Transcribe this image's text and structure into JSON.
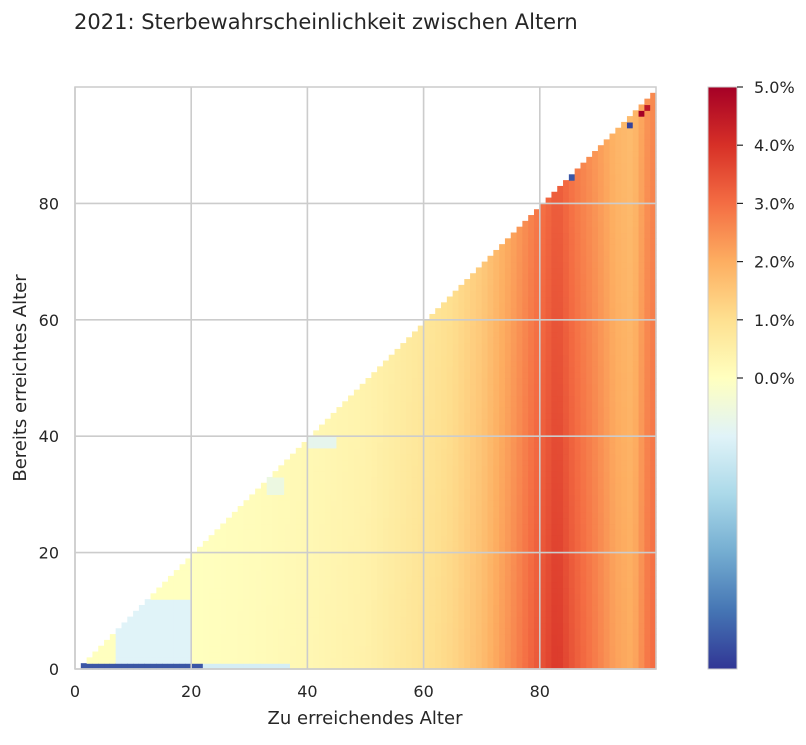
{
  "chart_data": {
    "type": "heatmap",
    "title": "2021: Sterbewahrscheinlichkeit zwischen Altern",
    "xlabel": "Zu erreichendes Alter",
    "ylabel": "Bereits erreichtes Alter",
    "x_range": [
      0,
      100
    ],
    "y_range": [
      0,
      100
    ],
    "x_ticks": [
      0,
      20,
      40,
      60,
      80
    ],
    "y_ticks": [
      0,
      20,
      40,
      60,
      80
    ],
    "grid": true,
    "mask": "cells shown only where Zu erreichendes Alter > Bereits erreichtes Alter",
    "colormap": "RdYlBu_r",
    "colormap_stops": [
      "#313695",
      "#4575b4",
      "#74add1",
      "#abd9e9",
      "#e0f3f8",
      "#ffffbf",
      "#fee090",
      "#fdae61",
      "#f46d43",
      "#d73027",
      "#a50026"
    ],
    "colorbar": {
      "min_percent": -5.0,
      "max_percent": 5.0,
      "tick_values": [
        5.0,
        4.0,
        3.0,
        2.0,
        1.0,
        0.0
      ],
      "tick_labels": [
        "5.0%",
        "4.0%",
        "3.0%",
        "2.0%",
        "1.0%",
        "0.0%"
      ]
    },
    "values_description_unit": "percent",
    "column_profile_percent": [
      {
        "x": 0,
        "v": 0.0
      },
      {
        "x": 20,
        "v": 0.0
      },
      {
        "x": 30,
        "v": 0.1
      },
      {
        "x": 40,
        "v": 0.25
      },
      {
        "x": 50,
        "v": 0.45
      },
      {
        "x": 60,
        "v": 0.9
      },
      {
        "x": 65,
        "v": 1.2
      },
      {
        "x": 70,
        "v": 1.7
      },
      {
        "x": 75,
        "v": 2.5
      },
      {
        "x": 80,
        "v": 3.4
      },
      {
        "x": 83,
        "v": 3.9
      },
      {
        "x": 86,
        "v": 3.3
      },
      {
        "x": 90,
        "v": 2.7
      },
      {
        "x": 93,
        "v": 2.2
      },
      {
        "x": 96,
        "v": 2.0
      },
      {
        "x": 99,
        "v": 3.0
      }
    ],
    "negative_regions_percent": [
      {
        "x_from": 1,
        "x_to": 22,
        "y_from": 0,
        "y_to": 1,
        "v": -4.5
      },
      {
        "x_from": 22,
        "x_to": 37,
        "y_from": 0,
        "y_to": 1,
        "v": -1.2
      },
      {
        "x_from": 7,
        "x_to": 20,
        "y_from": 1,
        "y_to": 12,
        "v": -1.0
      },
      {
        "x_from": 40,
        "x_to": 45,
        "y_from": 38,
        "y_to": 40,
        "v": -0.8
      },
      {
        "x_from": 33,
        "x_to": 36,
        "y_from": 30,
        "y_to": 33,
        "v": -0.6
      }
    ],
    "outlier_cells_percent": [
      {
        "x": 95,
        "y": 93,
        "v": -4.8
      },
      {
        "x": 85,
        "y": 84,
        "v": -4.5
      },
      {
        "x": 97,
        "y": 95,
        "v": 5.0
      },
      {
        "x": 98,
        "y": 96,
        "v": 4.5
      }
    ]
  }
}
